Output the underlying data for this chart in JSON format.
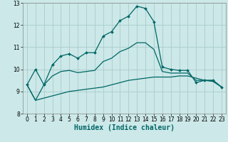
{
  "xlabel": "Humidex (Indice chaleur)",
  "background_color": "#cce8e8",
  "grid_color": "#aacccc",
  "line_color": "#006666",
  "xlim": [
    -0.5,
    23.5
  ],
  "ylim": [
    8,
    13
  ],
  "yticks": [
    8,
    9,
    10,
    11,
    12,
    13
  ],
  "xticks": [
    0,
    1,
    2,
    3,
    4,
    5,
    6,
    7,
    8,
    9,
    10,
    11,
    12,
    13,
    14,
    15,
    16,
    17,
    18,
    19,
    20,
    21,
    22,
    23
  ],
  "series1_x": [
    0,
    1,
    2,
    3,
    4,
    5,
    6,
    7,
    8,
    9,
    10,
    11,
    12,
    13,
    14,
    15,
    16,
    17,
    18,
    19,
    20,
    21,
    22,
    23
  ],
  "series1_y": [
    9.3,
    10.0,
    9.3,
    10.2,
    10.6,
    10.7,
    10.5,
    10.75,
    10.75,
    11.5,
    11.7,
    12.2,
    12.4,
    12.85,
    12.75,
    12.15,
    10.1,
    10.0,
    9.95,
    9.95,
    9.4,
    9.5,
    9.5,
    9.2
  ],
  "series2_x": [
    0,
    1,
    2,
    3,
    4,
    5,
    6,
    7,
    8,
    9,
    10,
    11,
    12,
    13,
    14,
    15,
    16,
    17,
    18,
    19,
    20,
    21,
    22,
    23
  ],
  "series2_y": [
    9.3,
    8.6,
    8.7,
    8.8,
    8.9,
    9.0,
    9.05,
    9.1,
    9.15,
    9.2,
    9.3,
    9.4,
    9.5,
    9.55,
    9.6,
    9.65,
    9.65,
    9.65,
    9.7,
    9.7,
    9.6,
    9.5,
    9.45,
    9.2
  ],
  "series3_x": [
    0,
    1,
    2,
    3,
    4,
    5,
    6,
    7,
    8,
    9,
    10,
    11,
    12,
    13,
    14,
    15,
    16,
    17,
    18,
    19,
    20,
    21,
    22,
    23
  ],
  "series3_y": [
    9.3,
    8.6,
    9.3,
    9.7,
    9.9,
    9.95,
    9.85,
    9.9,
    9.95,
    10.35,
    10.5,
    10.8,
    10.95,
    11.2,
    11.2,
    10.9,
    9.9,
    9.83,
    9.83,
    9.83,
    9.5,
    9.5,
    9.5,
    9.2
  ],
  "tick_fontsize": 5.5,
  "xlabel_fontsize": 7
}
